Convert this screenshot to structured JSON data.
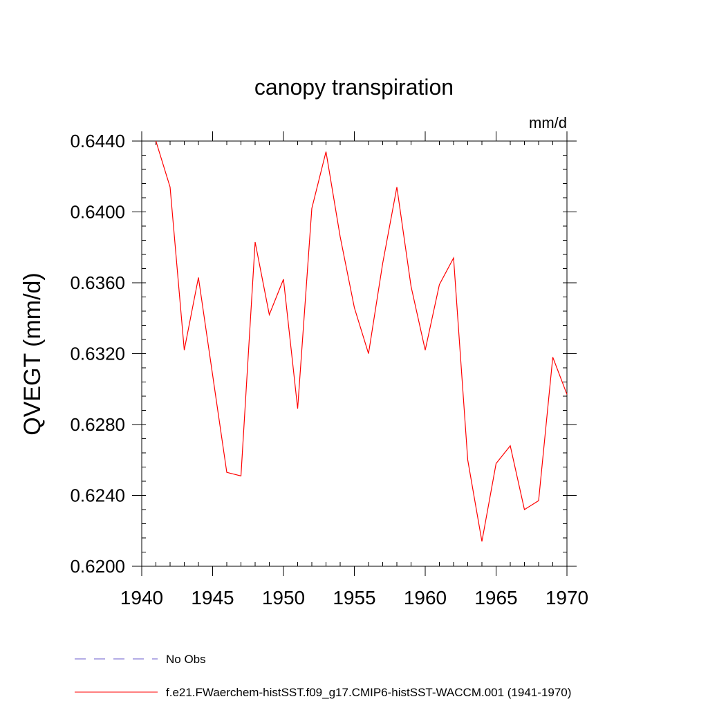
{
  "chart_data": {
    "type": "line",
    "title": "canopy transpiration",
    "units_label": "mm/d",
    "ylabel": "QVEGT  (mm/d)",
    "xlabel": "",
    "xlim": [
      1940,
      1970
    ],
    "ylim": [
      0.62,
      0.644
    ],
    "xticks": [
      1940,
      1945,
      1950,
      1955,
      1960,
      1965,
      1970
    ],
    "yticks": [
      0.62,
      0.624,
      0.628,
      0.632,
      0.636,
      0.64,
      0.644
    ],
    "ytick_labels": [
      "0.6200",
      "0.6240",
      "0.6280",
      "0.6320",
      "0.6360",
      "0.6400",
      "0.6440"
    ],
    "grid": false,
    "legend_position": "bottom",
    "series": [
      {
        "name": "f.e21.FWaerchem-histSST.f09_g17.CMIP6-histSST-WACCM.001 (1941-1970)",
        "color": "#ff0000",
        "style": "solid",
        "x": [
          1941,
          1942,
          1943,
          1944,
          1945,
          1946,
          1947,
          1948,
          1949,
          1950,
          1951,
          1952,
          1953,
          1954,
          1955,
          1956,
          1957,
          1958,
          1959,
          1960,
          1961,
          1962,
          1963,
          1964,
          1965,
          1966,
          1967,
          1968,
          1969,
          1970
        ],
        "values": [
          0.644,
          0.6414,
          0.6322,
          0.6363,
          0.6308,
          0.6253,
          0.6251,
          0.6383,
          0.6342,
          0.6362,
          0.6289,
          0.6402,
          0.6434,
          0.6386,
          0.6346,
          0.632,
          0.6371,
          0.6414,
          0.6358,
          0.6322,
          0.6359,
          0.6374,
          0.626,
          0.6214,
          0.6258,
          0.6268,
          0.6232,
          0.6237,
          0.6318,
          0.6297
        ]
      }
    ],
    "legend": [
      {
        "label": "No Obs",
        "color": "#6a5acd",
        "style": "dashed"
      },
      {
        "label": "f.e21.FWaerchem-histSST.f09_g17.CMIP6-histSST-WACCM.001 (1941-1970)",
        "color": "#ff0000",
        "style": "solid"
      }
    ]
  }
}
